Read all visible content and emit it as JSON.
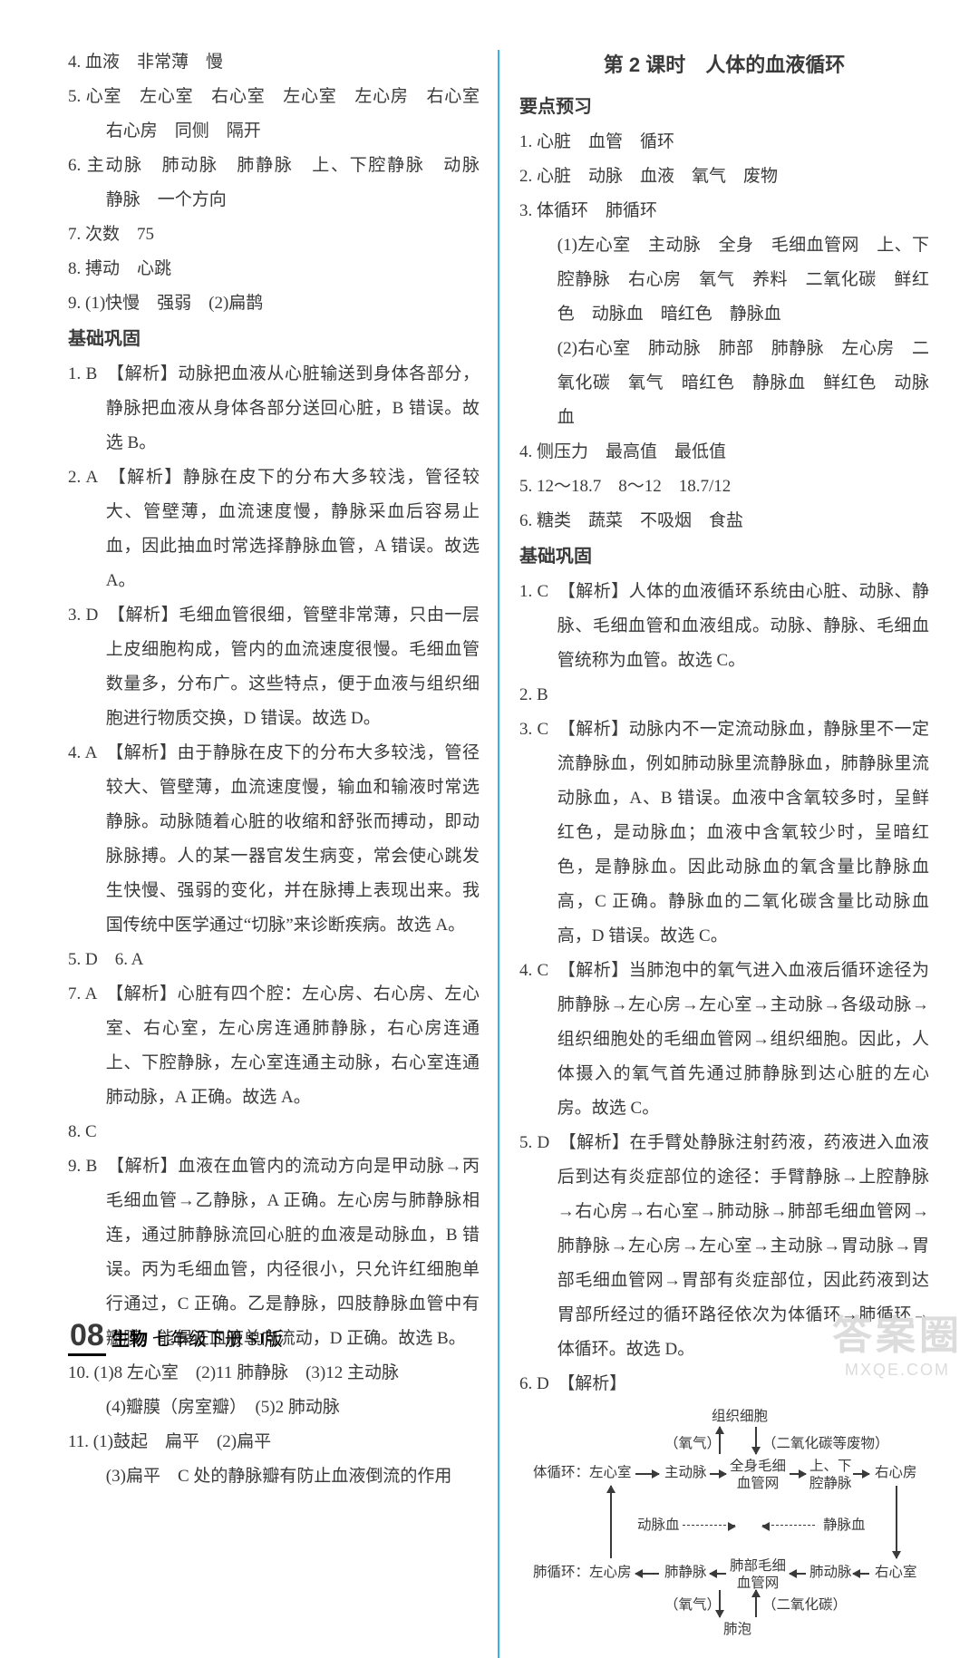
{
  "left": {
    "items": [
      "4. 血液　非常薄　慢",
      "5. 心室　左心室　右心室　左心室　左心房　右心室　右心房　同侧　隔开",
      "6. 主动脉　肺动脉　肺静脉　上、下腔静脉　动脉　静脉　一个方向",
      "7. 次数　75",
      "8. 搏动　心跳",
      "9. (1)快慢　强弱　(2)扁鹊"
    ],
    "sec_title": "基础巩固",
    "answers": [
      {
        "n": "1.",
        "a": "B",
        "t": "【解析】动脉把血液从心脏输送到身体各部分，静脉把血液从身体各部分送回心脏，B 错误。故选 B。"
      },
      {
        "n": "2.",
        "a": "A",
        "t": "【解析】静脉在皮下的分布大多较浅，管径较大、管壁薄，血流速度慢，静脉采血后容易止血，因此抽血时常选择静脉血管，A 错误。故选 A。"
      },
      {
        "n": "3.",
        "a": "D",
        "t": "【解析】毛细血管很细，管壁非常薄，只由一层上皮细胞构成，管内的血流速度很慢。毛细血管数量多，分布广。这些特点，便于血液与组织细胞进行物质交换，D 错误。故选 D。"
      },
      {
        "n": "4.",
        "a": "A",
        "t": "【解析】由于静脉在皮下的分布大多较浅，管径较大、管壁薄，血流速度慢，输血和输液时常选静脉。动脉随着心脏的收缩和舒张而搏动，即动脉脉搏。人的某一器官发生病变，常会使心跳发生快慢、强弱的变化，并在脉搏上表现出来。我国传统中医学通过“切脉”来诊断疾病。故选 A。"
      },
      {
        "n": "5.",
        "a": "D",
        "t": "　6. A"
      },
      {
        "n": "7.",
        "a": "A",
        "t": "【解析】心脏有四个腔：左心房、右心房、左心室、右心室，左心房连通肺静脉，右心房连通上、下腔静脉，左心室连通主动脉，右心室连通肺动脉，A 正确。故选 A。"
      },
      {
        "n": "8.",
        "a": "C",
        "t": ""
      },
      {
        "n": "9.",
        "a": "B",
        "t": "【解析】血液在血管内的流动方向是甲动脉→丙毛细血管→乙静脉，A 正确。左心房与肺静脉相连，通过肺静脉流回心脏的血液是动脉血，B 错误。丙为毛细血管，内径很小，只允许红细胞单行通过，C 正确。乙是静脉，四肢静脉血管中有瓣膜，能保证血液单向流动，D 正确。故选 B。"
      }
    ],
    "q10": {
      "l1": "10. (1)8 左心室　(2)11 肺静脉　(3)12 主动脉",
      "l2": "(4)瓣膜（房室瓣）　(5)2 肺动脉"
    },
    "q11": {
      "l1": "11. (1)鼓起　扁平　(2)扁平",
      "l2": "(3)扁平　C 处的静脉瓣有防止血液倒流的作用"
    }
  },
  "right": {
    "heading": "第 2 课时　人体的血液循环",
    "sec1": "要点预习",
    "pre": [
      "1. 心脏　血管　循环",
      "2. 心脏　动脉　血液　氧气　废物",
      "3. 体循环　肺循环"
    ],
    "pre3a": "(1)左心室　主动脉　全身　毛细血管网　上、下腔静脉　右心房　氧气　养料　二氧化碳　鲜红色　动脉血　暗红色　静脉血",
    "pre3b": "(2)右心室　肺动脉　肺部　肺静脉　左心房　二氧化碳　氧气　暗红色　静脉血　鲜红色　动脉血",
    "pre456": [
      "4. 侧压力　最高值　最低值",
      "5. 12～18.7　8～12　18.7/12",
      "6. 糖类　蔬菜　不吸烟　食盐"
    ],
    "sec2": "基础巩固",
    "answers": [
      {
        "n": "1.",
        "a": "C",
        "t": "【解析】人体的血液循环系统由心脏、动脉、静脉、毛细血管和血液组成。动脉、静脉、毛细血管统称为血管。故选 C。"
      },
      {
        "n": "2.",
        "a": "B",
        "t": ""
      },
      {
        "n": "3.",
        "a": "C",
        "t": "【解析】动脉内不一定流动脉血，静脉里不一定流静脉血，例如肺动脉里流静脉血，肺静脉里流动脉血，A、B 错误。血液中含氧较多时，呈鲜红色，是动脉血；血液中含氧较少时，呈暗红色，是静脉血。因此动脉血的氧含量比静脉血高，C 正确。静脉血的二氧化碳含量比动脉血高，D 错误。故选 C。"
      },
      {
        "n": "4.",
        "a": "C",
        "t": "【解析】当肺泡中的氧气进入血液后循环途径为肺静脉→左心房→左心室→主动脉→各级动脉→组织细胞处的毛细血管网→组织细胞。因此，人体摄入的氧气首先通过肺静脉到达心脏的左心房。故选 C。"
      },
      {
        "n": "5.",
        "a": "D",
        "t": "【解析】在手臂处静脉注射药液，药液进入血液后到达有炎症部位的途径：手臂静脉→上腔静脉→右心房→右心室→肺动脉→肺部毛细血管网→肺静脉→左心房→左心室→主动脉→胃动脉→胃部毛细血管网→胃部有炎症部位，因此药液到达胃部所经过的循环路径依次为体循环→肺循环→体循环。故选 D。"
      },
      {
        "n": "6.",
        "a": "D",
        "t": "【解析】"
      }
    ]
  },
  "diagram": {
    "top": "组织细胞",
    "top_left": "（氧气）",
    "top_right": "（二氧化碳等废物）",
    "row1_l": "体循环：左心室",
    "row1_m": "主动脉",
    "row1_c": "全身毛细\n血管网",
    "row1_r": "上、下\n腔静脉",
    "row1_rr": "右心房",
    "mid_l": "动脉血",
    "mid_r": "静脉血",
    "row2_l": "肺循环：左心房",
    "row2_m": "肺静脉",
    "row2_c": "肺部毛细\n血管网",
    "row2_r": "肺动脉",
    "row2_rr": "右心室",
    "bot_left": "（氧气）",
    "bot_right": "（二氧化碳）",
    "bot": "肺泡",
    "colors": {
      "line": "#3a3a3a"
    }
  },
  "footer": {
    "num": "08",
    "subject": "生物",
    "grade": "七年级下册 SJ版"
  },
  "watermark": {
    "l1": "答案圈",
    "l2": "MXQE.COM"
  }
}
